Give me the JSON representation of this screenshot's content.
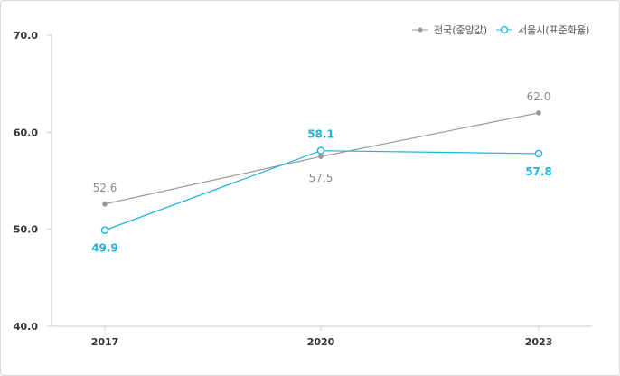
{
  "chart_data": {
    "type": "line",
    "categories": [
      "2017",
      "2020",
      "2023"
    ],
    "series": [
      {
        "name": "전국(중앙값)",
        "values": [
          52.6,
          57.5,
          62.0
        ],
        "color": "#999999",
        "marker": "filled-dot"
      },
      {
        "name": "서울시(표준화율)",
        "values": [
          49.9,
          58.1,
          57.8
        ],
        "color": "#1fb3dd",
        "marker": "hollow-circle"
      }
    ],
    "yticks": [
      "40.0",
      "50.0",
      "60.0",
      "70.0"
    ],
    "ylim": [
      40,
      70
    ],
    "grid": false,
    "legend": "top-right"
  }
}
